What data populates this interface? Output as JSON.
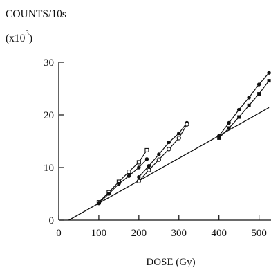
{
  "chart_data": {
    "type": "line",
    "title": "",
    "ylabel_line1": "COUNTS/10s",
    "ylabel_line2_prefix": "(x10",
    "ylabel_line2_exp": "3",
    "ylabel_line2_suffix": ")",
    "xlabel": "DOSE (Gy)",
    "xlim": [
      0,
      530
    ],
    "ylim": [
      0,
      30
    ],
    "x_ticks": [
      0,
      100,
      200,
      300,
      400,
      500
    ],
    "y_ticks": [
      0,
      10,
      20,
      30
    ],
    "grid": false,
    "legend": "none",
    "reference_line": {
      "x": [
        25,
        525
      ],
      "y": [
        0,
        21.4
      ]
    },
    "series": [
      {
        "marker": "open-square",
        "x": [
          100,
          125,
          150,
          175,
          200,
          220
        ],
        "y": [
          3.4,
          5.3,
          7.3,
          9.2,
          11.0,
          13.3
        ]
      },
      {
        "marker": "filled-circle",
        "x": [
          100,
          125,
          150,
          175,
          200,
          220
        ],
        "y": [
          3.2,
          5.0,
          6.9,
          8.4,
          10.0,
          11.6
        ]
      },
      {
        "marker": "filled-circle",
        "x": [
          200,
          225,
          250,
          275,
          300,
          320
        ],
        "y": [
          8.2,
          10.3,
          12.5,
          14.8,
          16.5,
          18.5
        ]
      },
      {
        "marker": "open-circle",
        "x": [
          200,
          225,
          250,
          275,
          300,
          320
        ],
        "y": [
          7.4,
          9.5,
          11.5,
          13.5,
          15.6,
          18.2
        ]
      },
      {
        "marker": "filled-circle",
        "x": [
          400,
          425,
          450,
          475,
          500,
          525
        ],
        "y": [
          16.0,
          18.5,
          21.0,
          23.3,
          25.8,
          28.0
        ]
      },
      {
        "marker": "filled-square",
        "x": [
          400,
          425,
          450,
          475,
          500,
          525
        ],
        "y": [
          15.6,
          17.5,
          19.6,
          21.8,
          24.0,
          26.5
        ]
      }
    ]
  }
}
